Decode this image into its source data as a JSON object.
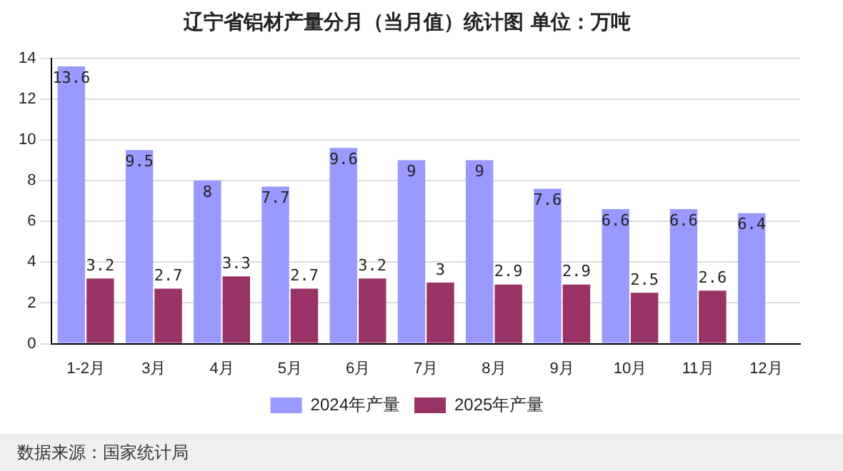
{
  "chart_data": {
    "type": "bar",
    "title": "辽宁省铝材产量分月（当月值）统计图 单位：万吨",
    "categories": [
      "1-2月",
      "3月",
      "4月",
      "5月",
      "6月",
      "7月",
      "8月",
      "9月",
      "10月",
      "11月",
      "12月"
    ],
    "series": [
      {
        "name": "2024年产量",
        "color": "#9999ff",
        "values": [
          13.6,
          9.5,
          8,
          7.7,
          9.6,
          9,
          9,
          7.6,
          6.6,
          6.6,
          6.4
        ]
      },
      {
        "name": "2025年产量",
        "color": "#993366",
        "values": [
          3.2,
          2.7,
          3.3,
          2.7,
          3.2,
          3,
          2.9,
          2.9,
          2.5,
          2.6,
          null
        ]
      }
    ],
    "ylim": [
      0,
      14
    ],
    "yticks": [
      0,
      2,
      4,
      6,
      8,
      10,
      12,
      14
    ],
    "grid": "y",
    "legend": "bottom",
    "data_labels": true,
    "annotations": [
      "数据来源：国家统计局"
    ]
  }
}
